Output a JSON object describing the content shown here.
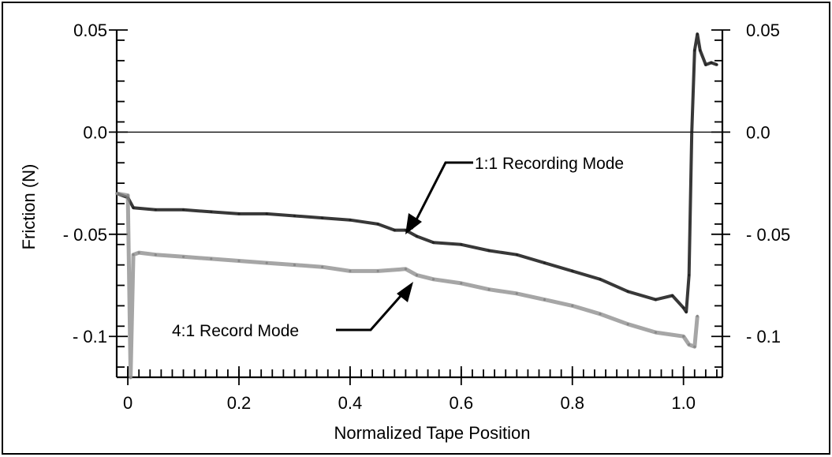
{
  "chart_data": {
    "type": "line",
    "xlabel": "Normalized Tape Position",
    "ylabel": "Friction   (N)",
    "xlim": [
      -0.02,
      1.07
    ],
    "ylim": [
      -0.12,
      0.05
    ],
    "x_ticks": [
      {
        "v": 0,
        "label": "0"
      },
      {
        "v": 0.2,
        "label": "0.2"
      },
      {
        "v": 0.4,
        "label": "0.4"
      },
      {
        "v": 0.6,
        "label": "0.6"
      },
      {
        "v": 0.8,
        "label": "0.8"
      },
      {
        "v": 1.0,
        "label": "1.0"
      }
    ],
    "y_ticks": [
      {
        "v": 0.05,
        "label": "0.05"
      },
      {
        "v": 0.0,
        "label": "0.0"
      },
      {
        "v": -0.05,
        "label": "- 0.05"
      },
      {
        "v": -0.1,
        "label": "- 0.1"
      }
    ],
    "y_ticks_right": [
      {
        "v": 0.05,
        "label": "0.05"
      },
      {
        "v": 0.0,
        "label": "0.0"
      },
      {
        "v": -0.05,
        "label": "- 0.05"
      },
      {
        "v": -0.1,
        "label": "- 0.1"
      }
    ],
    "zero_line": 0.0,
    "series": [
      {
        "name": "1:1 Recording Mode",
        "color": "#222222",
        "x": [
          -0.02,
          0.0,
          0.01,
          0.05,
          0.1,
          0.15,
          0.2,
          0.25,
          0.3,
          0.35,
          0.4,
          0.45,
          0.48,
          0.5,
          0.52,
          0.55,
          0.6,
          0.65,
          0.7,
          0.75,
          0.8,
          0.85,
          0.9,
          0.95,
          0.98,
          1.0,
          1.005,
          1.01,
          1.015,
          1.02,
          1.025,
          1.03,
          1.04,
          1.05,
          1.06
        ],
        "y": [
          -0.03,
          -0.032,
          -0.037,
          -0.038,
          -0.038,
          -0.039,
          -0.04,
          -0.04,
          -0.041,
          -0.042,
          -0.043,
          -0.045,
          -0.048,
          -0.048,
          -0.051,
          -0.054,
          -0.055,
          -0.058,
          -0.06,
          -0.064,
          -0.068,
          -0.072,
          -0.078,
          -0.082,
          -0.08,
          -0.086,
          -0.088,
          -0.07,
          0.0,
          0.04,
          0.048,
          0.04,
          0.033,
          0.034,
          0.033
        ]
      },
      {
        "name": "4:1 Record Mode",
        "color": "#888888",
        "x": [
          -0.02,
          0.0,
          0.005,
          0.01,
          0.02,
          0.05,
          0.1,
          0.15,
          0.2,
          0.25,
          0.3,
          0.35,
          0.4,
          0.45,
          0.5,
          0.52,
          0.55,
          0.6,
          0.65,
          0.7,
          0.75,
          0.8,
          0.85,
          0.9,
          0.95,
          1.0,
          1.01,
          1.02,
          1.025
        ],
        "y": [
          -0.03,
          -0.031,
          -0.12,
          -0.06,
          -0.059,
          -0.06,
          -0.061,
          -0.062,
          -0.063,
          -0.064,
          -0.065,
          -0.066,
          -0.068,
          -0.068,
          -0.067,
          -0.07,
          -0.072,
          -0.074,
          -0.077,
          -0.079,
          -0.082,
          -0.085,
          -0.089,
          -0.094,
          -0.098,
          -0.1,
          -0.104,
          -0.105,
          -0.09
        ]
      }
    ],
    "annotations": [
      {
        "text": "1:1 Recording Mode",
        "target": [
          0.5,
          -0.048
        ]
      },
      {
        "text": "4:1 Record Mode",
        "target": [
          0.52,
          -0.07
        ]
      }
    ]
  }
}
